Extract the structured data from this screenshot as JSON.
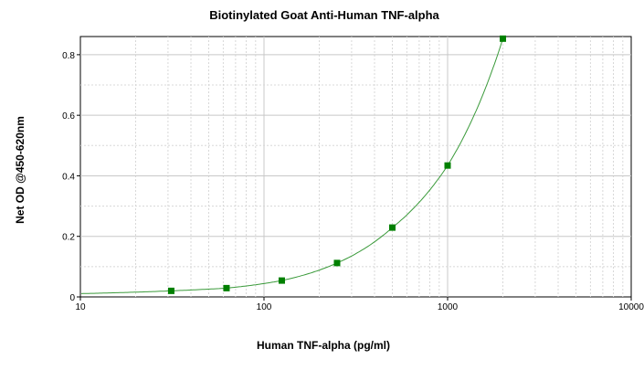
{
  "chart_data": {
    "type": "scatter",
    "title": "Biotinylated Goat Anti-Human TNF-alpha",
    "xlabel": "Human TNF-alpha (pg/ml)",
    "ylabel": "Net OD @450-620nm",
    "xscale": "log",
    "xlim": [
      10,
      10000
    ],
    "ylim": [
      0,
      0.86
    ],
    "x_ticks": [
      "10",
      "100",
      "1000",
      "10000"
    ],
    "y_ticks": [
      "0",
      "0.2",
      "0.4",
      "0.6",
      "0.8"
    ],
    "grid": true,
    "colors": {
      "series": "#008000",
      "curve": "#3a9a3a"
    },
    "series": [
      {
        "x": [
          31.25,
          62.5,
          125,
          250,
          500,
          1000,
          2000
        ],
        "y": [
          0.02,
          0.029,
          0.054,
          0.112,
          0.229,
          0.434,
          0.853
        ]
      }
    ]
  }
}
